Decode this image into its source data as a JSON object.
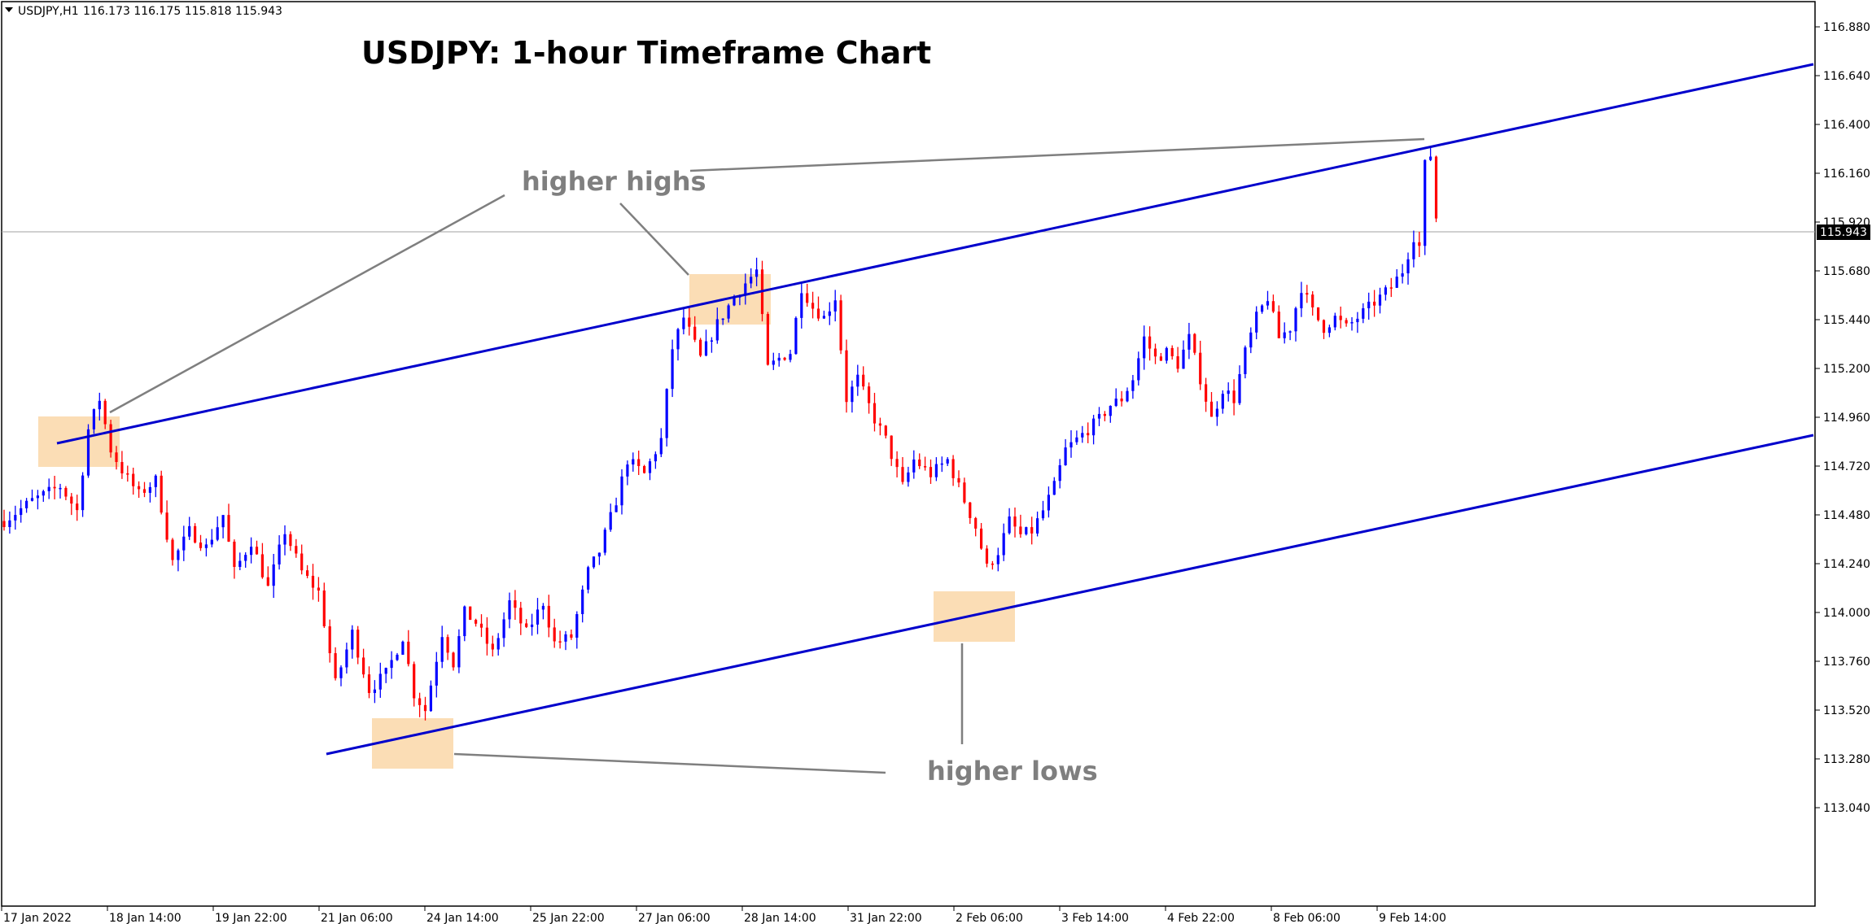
{
  "header": {
    "symbol": "USDJPY,H1",
    "ohlc": "116.173 116.175 115.818 115.943"
  },
  "colors": {
    "up_candle": "#0000ff",
    "down_candle": "#ff0000",
    "channel": "#0000cc",
    "highlight": "#fad7a8",
    "annotation": "#7f7f7f",
    "price_line": "#a0a0a0"
  },
  "chart_data": {
    "type": "candlestick",
    "title": "USDJPY: 1-hour Timeframe Chart",
    "symbol": "USDJPY",
    "timeframe": "H1",
    "ylim": [
      112.92,
      117.0
    ],
    "y_ticks": [
      "116.880",
      "116.640",
      "116.400",
      "116.160",
      "115.920",
      "115.680",
      "115.440",
      "115.200",
      "114.960",
      "114.720",
      "114.480",
      "114.240",
      "114.000",
      "113.760",
      "113.520",
      "113.280",
      "113.040"
    ],
    "x_ticks": [
      "17 Jan 2022",
      "18 Jan 14:00",
      "19 Jan 22:00",
      "21 Jan 06:00",
      "24 Jan 14:00",
      "25 Jan 22:00",
      "27 Jan 06:00",
      "28 Jan 14:00",
      "31 Jan 22:00",
      "2 Feb 06:00",
      "3 Feb 14:00",
      "4 Feb 22:00",
      "8 Feb 06:00",
      "9 Feb 14:00"
    ],
    "current_price": "115.943",
    "price_path": [
      [
        0,
        114.45
      ],
      [
        5,
        114.55
      ],
      [
        10,
        114.62
      ],
      [
        13,
        114.5
      ],
      [
        15,
        114.9
      ],
      [
        17,
        115.05
      ],
      [
        19,
        114.8
      ],
      [
        21,
        114.7
      ],
      [
        24,
        114.58
      ],
      [
        27,
        114.65
      ],
      [
        30,
        114.25
      ],
      [
        33,
        114.4
      ],
      [
        36,
        114.32
      ],
      [
        39,
        114.48
      ],
      [
        41,
        114.2
      ],
      [
        44,
        114.35
      ],
      [
        47,
        114.12
      ],
      [
        50,
        114.4
      ],
      [
        53,
        114.2
      ],
      [
        56,
        114.1
      ],
      [
        59,
        113.65
      ],
      [
        62,
        113.9
      ],
      [
        65,
        113.62
      ],
      [
        68,
        113.7
      ],
      [
        71,
        113.88
      ],
      [
        73,
        113.6
      ],
      [
        75,
        113.52
      ],
      [
        78,
        113.9
      ],
      [
        80,
        113.75
      ],
      [
        82,
        114.0
      ],
      [
        84,
        113.95
      ],
      [
        87,
        113.8
      ],
      [
        90,
        114.05
      ],
      [
        93,
        113.9
      ],
      [
        96,
        114.05
      ],
      [
        98,
        113.85
      ],
      [
        101,
        113.88
      ],
      [
        104,
        114.2
      ],
      [
        106,
        114.3
      ],
      [
        109,
        114.55
      ],
      [
        111,
        114.75
      ],
      [
        114,
        114.68
      ],
      [
        117,
        114.85
      ],
      [
        119,
        115.3
      ],
      [
        121,
        115.45
      ],
      [
        124,
        115.25
      ],
      [
        127,
        115.42
      ],
      [
        130,
        115.55
      ],
      [
        132,
        115.62
      ],
      [
        134,
        115.68
      ],
      [
        136,
        115.2
      ],
      [
        138,
        115.25
      ],
      [
        140,
        115.28
      ],
      [
        142,
        115.6
      ],
      [
        144,
        115.5
      ],
      [
        146,
        115.45
      ],
      [
        148,
        115.55
      ],
      [
        150,
        115.05
      ],
      [
        152,
        115.15
      ],
      [
        155,
        114.95
      ],
      [
        157,
        114.85
      ],
      [
        160,
        114.62
      ],
      [
        162,
        114.75
      ],
      [
        165,
        114.68
      ],
      [
        168,
        114.75
      ],
      [
        171,
        114.55
      ],
      [
        173,
        114.42
      ],
      [
        175,
        114.22
      ],
      [
        177,
        114.3
      ],
      [
        179,
        114.45
      ],
      [
        181,
        114.38
      ],
      [
        183,
        114.4
      ],
      [
        185,
        114.5
      ],
      [
        187,
        114.62
      ],
      [
        189,
        114.8
      ],
      [
        191,
        114.85
      ],
      [
        193,
        114.9
      ],
      [
        195,
        114.95
      ],
      [
        197,
        115.02
      ],
      [
        199,
        115.05
      ],
      [
        201,
        115.15
      ],
      [
        203,
        115.35
      ],
      [
        205,
        115.25
      ],
      [
        207,
        115.28
      ],
      [
        209,
        115.22
      ],
      [
        211,
        115.35
      ],
      [
        213,
        115.15
      ],
      [
        215,
        114.95
      ],
      [
        217,
        115.1
      ],
      [
        219,
        115.05
      ],
      [
        221,
        115.28
      ],
      [
        223,
        115.45
      ],
      [
        225,
        115.55
      ],
      [
        227,
        115.35
      ],
      [
        229,
        115.4
      ],
      [
        231,
        115.6
      ],
      [
        233,
        115.48
      ],
      [
        235,
        115.4
      ],
      [
        237,
        115.45
      ],
      [
        239,
        115.4
      ],
      [
        241,
        115.45
      ],
      [
        243,
        115.5
      ],
      [
        245,
        115.55
      ],
      [
        247,
        115.6
      ],
      [
        249,
        115.68
      ],
      [
        251,
        115.85
      ],
      [
        252,
        115.8
      ],
      [
        253,
        116.2
      ],
      [
        254,
        116.25
      ],
      [
        255,
        115.943
      ]
    ]
  },
  "annotations": {
    "higher_highs": "higher highs",
    "higher_lows": "higher lows"
  }
}
